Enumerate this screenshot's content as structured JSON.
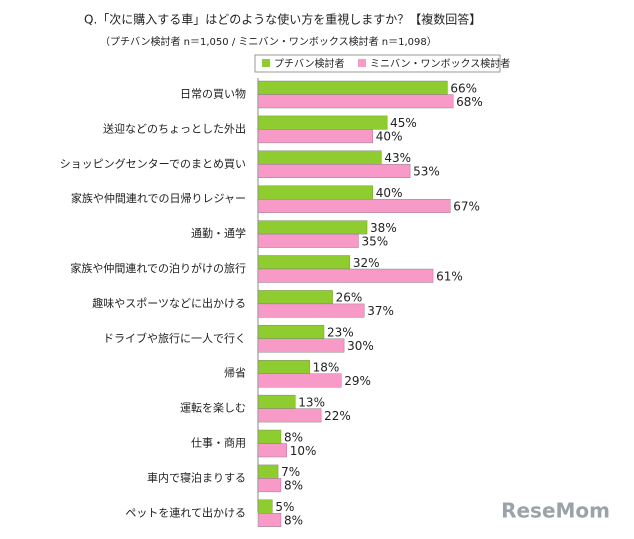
{
  "chart_data": {
    "type": "bar",
    "orientation": "horizontal",
    "title": "Q.「次に購入する車」はどのような使い方を重視しますか？【複数回答】",
    "subtitle": "（プチバン検討者 n＝1,050 / ミニバン・ワンボックス検討者 n＝1,098）",
    "categories": [
      "日常の買い物",
      "送迎などのちょっとした外出",
      "ショッピングセンターでのまとめ買い",
      "家族や仲間連れでの日帰りレジャー",
      "通勤・通学",
      "家族や仲間連れでの泊りがけの旅行",
      "趣味やスポーツなどに出かける",
      "ドライブや旅行に一人で行く",
      "帰省",
      "運転を楽しむ",
      "仕事・商用",
      "車内で寝泊まりする",
      "ペットを連れて出かける"
    ],
    "series": [
      {
        "name": "プチバン検討者",
        "color": "#8fcc2f",
        "values": [
          66,
          45,
          43,
          40,
          38,
          32,
          26,
          23,
          18,
          13,
          8,
          7,
          5
        ],
        "value_labels": [
          "66%",
          "45%",
          "43%",
          "40%",
          "38%",
          "32%",
          "26%",
          "23%",
          "18%",
          "13%",
          "8%",
          "7%",
          "5%"
        ]
      },
      {
        "name": "ミニバン・ワンボックス検討者",
        "color": "#f79ac8",
        "values": [
          68,
          40,
          53,
          67,
          35,
          61,
          37,
          30,
          29,
          22,
          10,
          8,
          8
        ],
        "value_labels": [
          "68%",
          "40%",
          "53%",
          "67%",
          "35%",
          "61%",
          "37%",
          "30%",
          "29%",
          "22%",
          "10%",
          "8%",
          "8%"
        ]
      }
    ],
    "legend": "top",
    "watermark": "ReseMom"
  }
}
